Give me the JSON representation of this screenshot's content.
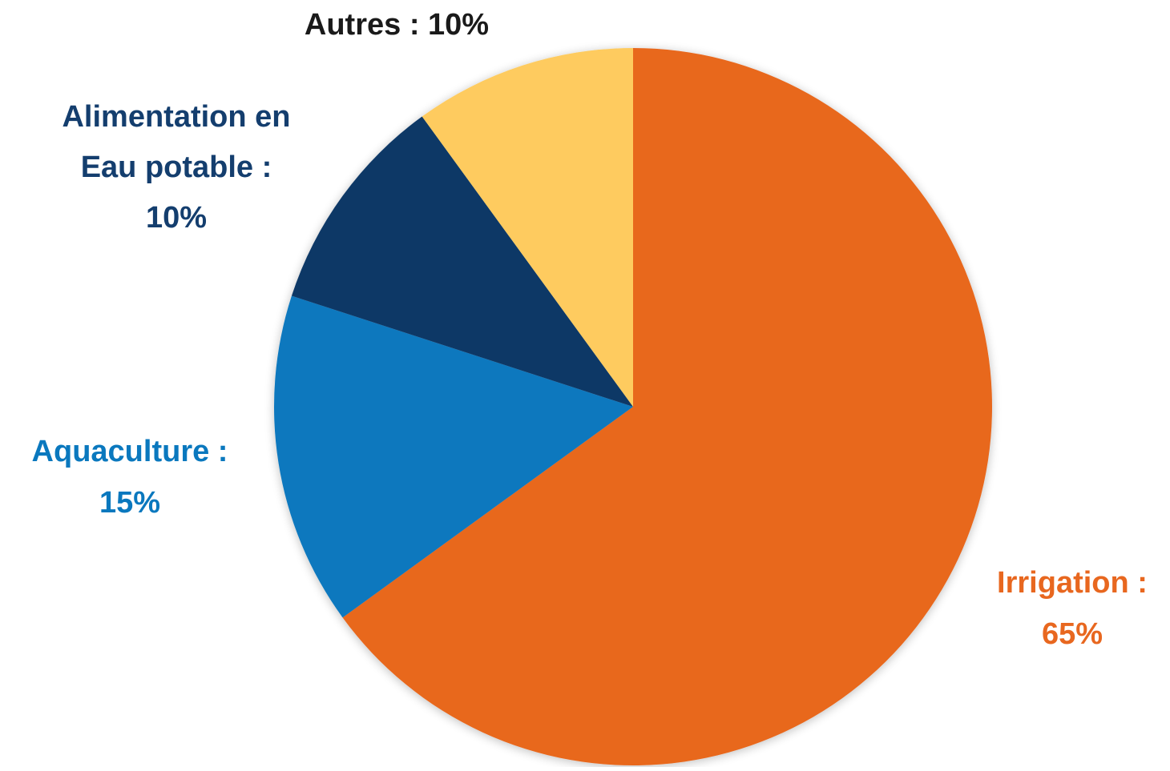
{
  "chart_data": {
    "type": "pie",
    "start": "12 o'clock",
    "direction": "clockwise",
    "slices": [
      {
        "name": "Irrigation",
        "value": 65,
        "color": "#E8671F",
        "label_color": "#E8671F",
        "label_lines": [
          "Irrigation :",
          "65%"
        ]
      },
      {
        "name": "Aquaculture",
        "value": 15,
        "color": "#0A78BE",
        "label_color": "#0A78BE",
        "label_lines": [
          "Aquaculture :",
          "15%"
        ]
      },
      {
        "name": "Alimentation en Eau potable",
        "value": 10,
        "color": "#0C3766",
        "label_color": "#143E6E",
        "label_lines": [
          "Alimentation en",
          "Eau potable :",
          "10%"
        ]
      },
      {
        "name": "Autres",
        "value": 10,
        "color": "#FECB5E",
        "label_color": "#1A1A1A",
        "label_lines": [
          "Autres : 10%"
        ]
      }
    ]
  }
}
